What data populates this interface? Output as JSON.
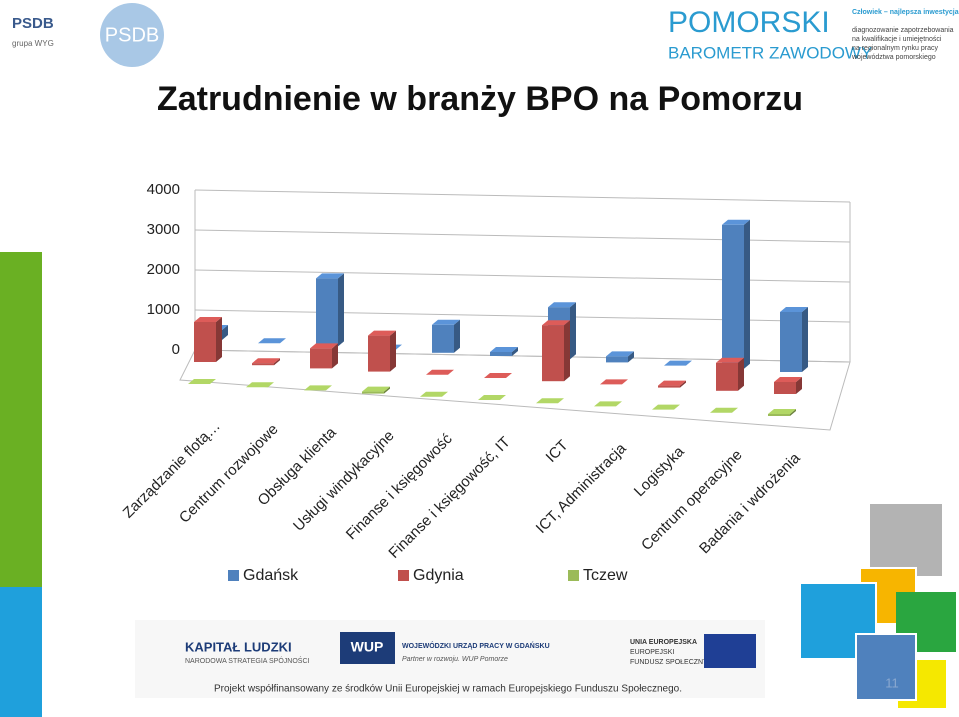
{
  "header": {
    "logo_left": "PSDB",
    "logo_left_sub": "grupa WYG",
    "logo_badge": "PSDB",
    "logo_right_title": "POMORSKI",
    "logo_right_sub": "BAROMETR ZAWODOWY",
    "tagline_title": "Człowiek – najlepsza inwestycja",
    "tagline_lines": [
      "diagnozowanie zapotrzebowania",
      "na kwalifikacje i umiejętności",
      "na regionalnym rynku pracy",
      "województwa pomorskiego"
    ]
  },
  "chart_data": {
    "type": "bar3d",
    "title": "Zatrudnienie w branży BPO na Pomorzu",
    "categories": [
      "Zarządzanie flotą…",
      "Centrum rozwojowe",
      "Obsługa klienta",
      "Usługi windykacyjne",
      "Finanse i księgowość",
      "Finanse i księgowość, IT",
      "ICT",
      "ICT, Administracja",
      "Logistyka",
      "Centrum operacyjne",
      "Badania i wdrożenia"
    ],
    "series": [
      {
        "name": "Gdańsk",
        "color": "#4f81bd",
        "values": [
          250,
          0,
          1700,
          0,
          700,
          100,
          1300,
          150,
          0,
          3600,
          1500
        ]
      },
      {
        "name": "Gdynia",
        "color": "#c0504d",
        "values": [
          1000,
          50,
          500,
          900,
          0,
          0,
          1400,
          0,
          50,
          700,
          300
        ]
      },
      {
        "name": "Tczew",
        "color": "#9bbb59",
        "values": [
          0,
          0,
          0,
          50,
          0,
          0,
          0,
          0,
          0,
          0,
          50
        ]
      }
    ],
    "ylim": [
      0,
      4000
    ],
    "yticks": [
      0,
      1000,
      2000,
      3000,
      4000
    ],
    "grid": true,
    "legend": "bottom"
  },
  "footer": {
    "logos": [
      "KAPITAŁ LUDZKI",
      "NARODOWA STRATEGIA SPÓJNOŚCI",
      "WUP",
      "WOJEWÓDZKI URZĄD PRACY W GDAŃSKU",
      "Partner w rozwoju. WUP Pomorze",
      "UNIA EUROPEJSKA",
      "EUROPEJSKI",
      "FUNDUSZ SPOŁECZNY"
    ],
    "note": "Projekt współfinansowany ze środków Unii Europejskiej w ramach Europejskiego Funduszu Społecznego.",
    "page": "11"
  }
}
